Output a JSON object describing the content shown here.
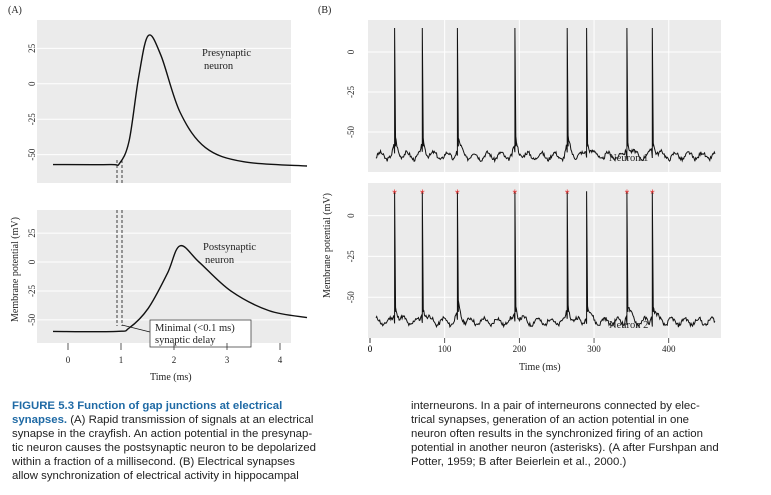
{
  "figure": {
    "panel_a_label": "(A)",
    "panel_b_label": "(B)",
    "a_ylabel": "Membrane potential (mV)",
    "b_ylabel": "Membrane potential (mV)",
    "a_xlabel": "Time (ms)",
    "b_xlabel": "Time (ms)",
    "presyn_label_1": "Presynaptic",
    "presyn_label_2": "neuron",
    "postsyn_label_1": "Postsynaptic",
    "postsyn_label_2": "neuron",
    "delay_label_1": "Minimal (<0.1 ms)",
    "delay_label_2": "synaptic delay",
    "neuron1_label": "Neuron 1",
    "neuron2_label": "Neuron 2",
    "asterisk": "*",
    "spike_color": "#111111",
    "asterisk_color": "#e03030",
    "panel_bg": "#ebebeb",
    "grid_color": "#ffffff"
  },
  "chart_data": [
    {
      "type": "line",
      "panel": "A-top",
      "series": [
        {
          "name": "Presynaptic neuron",
          "x": [
            0,
            0.9,
            1.05,
            1.2,
            1.35,
            1.5,
            1.7,
            2.0,
            2.4,
            3.0,
            4.0
          ],
          "y": [
            -57,
            -57,
            -56,
            -40,
            5,
            34,
            20,
            -20,
            -45,
            -55,
            -58
          ]
        }
      ],
      "yticks": [
        25,
        0,
        -25,
        -50
      ],
      "ylim": [
        -70,
        45
      ],
      "xlim": [
        0,
        4
      ]
    },
    {
      "type": "line",
      "panel": "A-bottom",
      "series": [
        {
          "name": "Postsynaptic neuron",
          "x": [
            0,
            1.0,
            1.2,
            1.5,
            1.8,
            2.0,
            2.3,
            2.8,
            3.4,
            4.0
          ],
          "y": [
            -60,
            -60,
            -57,
            -40,
            -10,
            14,
            0,
            -25,
            -42,
            -48
          ]
        }
      ],
      "yticks": [
        25,
        0,
        -25,
        -50
      ],
      "xticks": [
        0,
        1,
        2,
        3,
        4
      ],
      "ylim": [
        -70,
        45
      ],
      "xlim": [
        0,
        4
      ]
    },
    {
      "type": "line",
      "panel": "B-top",
      "series": [
        {
          "name": "Neuron 1",
          "spike_times": [
            33,
            70,
            117,
            194,
            264,
            290,
            344,
            378
          ],
          "y_peak": 15,
          "y_rest": -65
        }
      ],
      "yticks": [
        0,
        -25,
        -50
      ],
      "ylim": [
        -75,
        20
      ],
      "xlim": [
        0,
        470
      ]
    },
    {
      "type": "line",
      "panel": "B-bottom",
      "series": [
        {
          "name": "Neuron 2",
          "spike_times": [
            33,
            70,
            117,
            194,
            264,
            290,
            344,
            378
          ],
          "asterisk_times": [
            33,
            70,
            117,
            194,
            264,
            344,
            378
          ],
          "y_peak": 15,
          "y_rest": -65
        }
      ],
      "yticks": [
        0,
        -25,
        -50
      ],
      "xticks": [
        0,
        100,
        200,
        300,
        400
      ],
      "ylim": [
        -75,
        20
      ],
      "xlim": [
        0,
        470
      ]
    }
  ],
  "caption": {
    "left_title": "FIGURE 5.3",
    "left_title_rest": "Function of gap junctions at electrical",
    "left_line2_bold": "synapses.",
    "left_line2_rest": " (A) Rapid transmission of signals at an electrical",
    "left_lines": [
      "synapse in the crayfish. An action potential in the presynap-",
      "tic neuron causes the postsynaptic neuron to be depolarized",
      "within a fraction of a millisecond. (B) Electrical synapses",
      "allow synchronization of electrical activity in hippocampal"
    ],
    "right_lines": [
      "interneurons. In a pair of interneurons connected by elec-",
      "trical synapses, generation of an action potential in one",
      "neuron often results in the synchronized firing of an action",
      "potential in another neuron (asterisks). (A after Furshpan and",
      "Potter, 1959; B after Beierlein et al., 2000.)"
    ]
  }
}
